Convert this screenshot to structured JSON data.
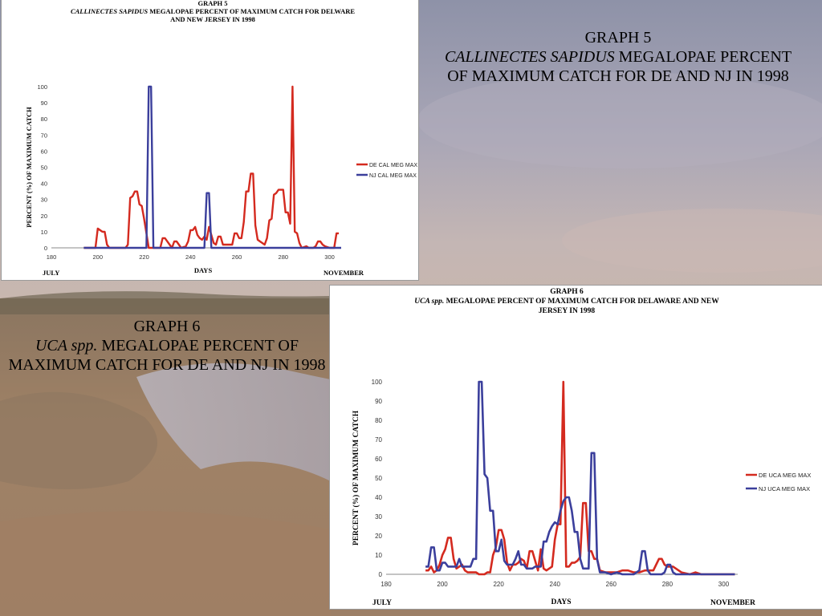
{
  "slide": {
    "caption5": {
      "line1": "GRAPH 5",
      "italic": "CALLINECTES SAPIDUS",
      "rest": " MEGALOPAE PERCENT OF MAXIMUM CATCH FOR DE AND NJ IN 1998"
    },
    "caption6": {
      "line1": "GRAPH 6",
      "italic": "UCA spp.",
      "rest": " MEGALOPAE PERCENT OF MAXIMUM CATCH FOR DE AND NJ IN 1998"
    }
  },
  "colors": {
    "de": "#d42a1f",
    "nj": "#3b3f9c"
  },
  "chart_data": [
    {
      "type": "line",
      "title": "GRAPH 5",
      "subtitle_italic": "CALLINECTES SAPIDUS",
      "subtitle_rest": " MEGALOPAE PERCENT OF MAXIMUM CATCH FOR  DELWARE",
      "subtitle_line2": "AND NEW JERSEY IN 1998",
      "xlabel": "DAYS",
      "ylabel": "PERCENT (%) OF MAXIMUM CATCH",
      "corner_left": "JULY",
      "corner_right": "NOVEMBER",
      "xlim": [
        180,
        305
      ],
      "ylim": [
        0,
        100
      ],
      "xticks": [
        180,
        200,
        220,
        240,
        260,
        280,
        300
      ],
      "yticks": [
        0,
        10,
        20,
        30,
        40,
        50,
        60,
        70,
        80,
        90,
        100
      ],
      "grid": false,
      "legend_position": "right",
      "series": [
        {
          "name": "DE CAL MEG MAX",
          "color": "#d42a1f",
          "x": [
            194,
            199,
            200,
            201,
            202,
            203,
            204,
            205,
            206,
            210,
            212,
            213,
            214,
            215,
            216,
            217,
            218,
            219,
            220,
            222,
            223,
            225,
            227,
            228,
            229,
            231,
            232,
            233,
            234,
            236,
            238,
            239,
            240,
            241,
            242,
            243,
            244,
            245,
            246,
            247,
            248,
            249,
            250,
            251,
            252,
            253,
            254,
            256,
            258,
            259,
            260,
            261,
            262,
            263,
            264,
            265,
            266,
            267,
            268,
            269,
            270,
            271,
            272,
            273,
            274,
            275,
            276,
            277,
            278,
            279,
            280,
            281,
            282,
            283,
            284,
            285,
            286,
            287,
            288,
            290,
            291,
            293,
            294,
            295,
            296,
            297,
            298,
            300,
            301,
            302,
            303,
            304
          ],
          "y": [
            0,
            0,
            12,
            11,
            10,
            10,
            2,
            0,
            0,
            0,
            0,
            2,
            31,
            32,
            35,
            35,
            27,
            26,
            18,
            0,
            0,
            0,
            0,
            6,
            6,
            2,
            0,
            4,
            4,
            0,
            1,
            4,
            11,
            11,
            13,
            8,
            6,
            5,
            7,
            5,
            13,
            8,
            3,
            2,
            7,
            7,
            2,
            2,
            2,
            9,
            9,
            6,
            6,
            16,
            35,
            35,
            46,
            46,
            14,
            5,
            4,
            3,
            2,
            6,
            17,
            18,
            33,
            34,
            36,
            36,
            36,
            22,
            22,
            15,
            100,
            10,
            9,
            3,
            0,
            1,
            0,
            0,
            1,
            4,
            4,
            2,
            1,
            0,
            0,
            0,
            9,
            9
          ]
        },
        {
          "name": "NJ CAL MEG MAX",
          "color": "#3b3f9c",
          "x": [
            194,
            220,
            221,
            222,
            223,
            224,
            246,
            247,
            248,
            249,
            250,
            305
          ],
          "y": [
            0,
            0,
            0,
            100,
            100,
            0,
            0,
            34,
            34,
            0,
            0,
            0
          ]
        }
      ]
    },
    {
      "type": "line",
      "title": "GRAPH 6",
      "subtitle_italic": "UCA spp.",
      "subtitle_rest": " MEGALOPAE PERCENT OF MAXIMUM CATCH FOR DELAWARE AND NEW",
      "subtitle_line2": "JERSEY IN 1998",
      "xlabel": "DAYS",
      "ylabel": "PERCENT (%) OF MAXIMUM CATCH",
      "corner_left": "JULY",
      "corner_right": "NOVEMBER",
      "xlim": [
        180,
        305
      ],
      "ylim": [
        0,
        100
      ],
      "xticks": [
        180,
        200,
        220,
        240,
        260,
        280,
        300
      ],
      "yticks": [
        0,
        10,
        20,
        30,
        40,
        50,
        60,
        70,
        80,
        90,
        100
      ],
      "grid": false,
      "legend_position": "right",
      "series": [
        {
          "name": "DE UCA MEG MAX",
          "color": "#d42a1f",
          "x": [
            194,
            195,
            196,
            197,
            198,
            199,
            200,
            201,
            202,
            203,
            204,
            205,
            206,
            207,
            208,
            209,
            210,
            211,
            212,
            213,
            214,
            215,
            216,
            217,
            218,
            219,
            220,
            221,
            222,
            223,
            224,
            225,
            226,
            227,
            228,
            229,
            230,
            231,
            232,
            233,
            234,
            235,
            236,
            237,
            238,
            239,
            240,
            241,
            242,
            243,
            244,
            245,
            246,
            247,
            248,
            249,
            250,
            251,
            252,
            253,
            254,
            255,
            256,
            258,
            260,
            262,
            264,
            266,
            268,
            270,
            272,
            274,
            275,
            276,
            277,
            278,
            279,
            280,
            282,
            285,
            288,
            290,
            292,
            295,
            298,
            300,
            302,
            304
          ],
          "y": [
            2,
            2,
            4,
            1,
            2,
            5,
            10,
            13,
            19,
            19,
            8,
            3,
            4,
            5,
            2,
            1,
            1,
            1,
            1,
            0,
            0,
            0,
            1,
            1,
            10,
            14,
            23,
            23,
            18,
            6,
            2,
            5,
            5,
            6,
            8,
            7,
            3,
            12,
            12,
            7,
            2,
            13,
            3,
            2,
            3,
            4,
            18,
            26,
            26,
            100,
            4,
            4,
            6,
            6,
            7,
            9,
            37,
            37,
            12,
            12,
            8,
            8,
            2,
            1,
            1,
            1,
            2,
            2,
            1,
            1,
            2,
            2,
            2,
            5,
            8,
            8,
            5,
            4,
            4,
            1,
            0,
            1,
            0,
            0,
            0,
            0,
            0,
            0
          ]
        },
        {
          "name": "NJ UCA MEG MAX",
          "color": "#3b3f9c",
          "x": [
            194,
            195,
            196,
            197,
            198,
            199,
            200,
            201,
            202,
            203,
            204,
            205,
            206,
            207,
            208,
            209,
            210,
            211,
            212,
            213,
            214,
            215,
            216,
            217,
            218,
            219,
            220,
            221,
            222,
            223,
            224,
            225,
            226,
            227,
            228,
            229,
            230,
            231,
            232,
            233,
            234,
            235,
            236,
            237,
            238,
            239,
            240,
            241,
            242,
            243,
            244,
            245,
            246,
            247,
            248,
            249,
            250,
            251,
            252,
            253,
            254,
            255,
            256,
            258,
            260,
            262,
            264,
            266,
            268,
            270,
            271,
            272,
            273,
            274,
            276,
            278,
            279,
            280,
            281,
            282,
            283,
            284,
            285,
            288,
            290,
            292,
            295,
            298,
            300,
            302,
            304
          ],
          "y": [
            4,
            4,
            14,
            14,
            2,
            2,
            6,
            6,
            4,
            4,
            4,
            4,
            8,
            4,
            4,
            4,
            4,
            8,
            8,
            100,
            100,
            52,
            50,
            33,
            33,
            12,
            12,
            18,
            7,
            5,
            5,
            5,
            8,
            12,
            5,
            5,
            3,
            3,
            3,
            4,
            4,
            4,
            17,
            17,
            22,
            25,
            27,
            26,
            33,
            38,
            40,
            40,
            33,
            22,
            22,
            8,
            3,
            3,
            3,
            63,
            63,
            8,
            1,
            1,
            0,
            1,
            0,
            0,
            0,
            2,
            12,
            12,
            2,
            0,
            0,
            0,
            1,
            5,
            5,
            1,
            0,
            0,
            0,
            0,
            0,
            0,
            0,
            0,
            0,
            0,
            0
          ]
        }
      ]
    }
  ]
}
